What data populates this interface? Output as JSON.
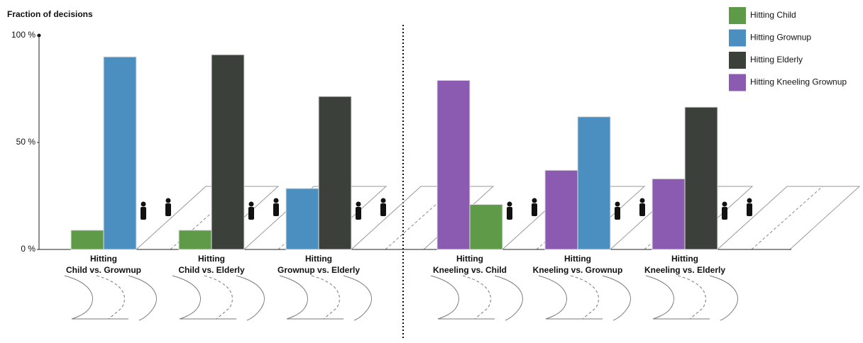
{
  "chart_data": {
    "type": "bar",
    "ylabel": "Fraction of decisions",
    "categories": [
      [
        "Hitting",
        "Child vs. Grownup"
      ],
      [
        "Hitting",
        "Child vs. Elderly"
      ],
      [
        "Hitting",
        "Grownup vs. Elderly"
      ],
      [
        "Hitting",
        "Kneeling vs. Child"
      ],
      [
        "Hitting",
        "Kneeling vs. Grownup"
      ],
      [
        "Hitting",
        "Kneeling vs. Elderly"
      ]
    ],
    "series": [
      {
        "name": "Hitting Child",
        "color": "#5e9a48",
        "values": [
          9,
          9,
          null,
          21,
          null,
          null
        ]
      },
      {
        "name": "Hitting Grownup",
        "color": "#4a8fc0",
        "values": [
          90,
          null,
          28.5,
          null,
          62,
          null
        ]
      },
      {
        "name": "Hitting Elderly",
        "color": "#3b403a",
        "values": [
          null,
          91,
          71.5,
          null,
          null,
          66.5
        ]
      },
      {
        "name": "Hitting Kneeling Grownup",
        "color": "#8a5bb0",
        "values": [
          null,
          null,
          null,
          79,
          37,
          33
        ]
      }
    ],
    "ylim": [
      0,
      100
    ],
    "yticks": [
      {
        "value": 0,
        "label": "0 %"
      },
      {
        "value": 50,
        "label": "50 %"
      },
      {
        "value": 100,
        "label": "100 %"
      }
    ],
    "legend": "top-right"
  }
}
